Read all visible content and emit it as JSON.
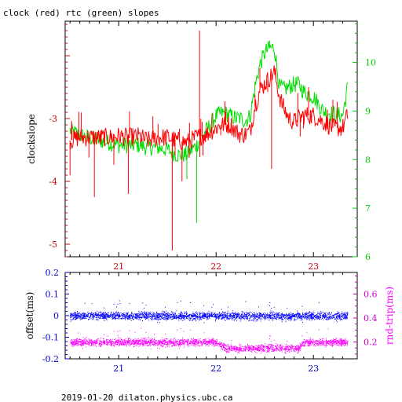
{
  "title": "clock (red) rtc (green) slopes",
  "footer": "2019-01-20 dilaton.physics.ubc.ca",
  "chart_data": [
    {
      "type": "line",
      "title": "clock (red) rtc (green) slopes",
      "xlabel": "",
      "ylabel": "clockslope",
      "xlim": [
        20.45,
        23.45
      ],
      "ylim": [
        -5.2,
        -1.45
      ],
      "y2lim": [
        6.0,
        10.85
      ],
      "x_ticks": [
        21,
        22,
        23
      ],
      "y_ticks": [
        -5,
        -4,
        -3
      ],
      "y2_ticks": [
        6,
        7,
        8,
        9,
        10
      ],
      "colors": {
        "clock": "#ff0000",
        "rtc": "#00dd00",
        "left_axis": "#cc0000",
        "right_axis": "#00cc00"
      },
      "series": [
        {
          "name": "clock",
          "axis": "left",
          "x": [
            20.5,
            20.6,
            20.7,
            20.8,
            20.9,
            21.0,
            21.1,
            21.2,
            21.3,
            21.4,
            21.5,
            21.6,
            21.7,
            21.8,
            21.9,
            22.0,
            22.05,
            22.1,
            22.15,
            22.2,
            22.25,
            22.3,
            22.35,
            22.4,
            22.45,
            22.5,
            22.55,
            22.6,
            22.65,
            22.7,
            22.75,
            22.8,
            22.85,
            22.9,
            23.0,
            23.1,
            23.2,
            23.3,
            23.35
          ],
          "y": [
            -3.35,
            -3.3,
            -3.3,
            -3.3,
            -3.3,
            -3.28,
            -3.3,
            -3.28,
            -3.35,
            -3.3,
            -3.3,
            -3.35,
            -3.38,
            -3.3,
            -3.25,
            -3.15,
            -3.1,
            -3.1,
            -3.1,
            -3.2,
            -3.25,
            -3.25,
            -3.2,
            -2.8,
            -2.55,
            -2.45,
            -2.35,
            -2.25,
            -2.65,
            -2.85,
            -3.0,
            -3.05,
            -3.0,
            -2.95,
            -2.95,
            -3.05,
            -3.15,
            -3.15,
            -2.95
          ]
        },
        {
          "name": "rtc",
          "axis": "right",
          "x": [
            20.5,
            20.6,
            20.7,
            20.8,
            20.9,
            21.0,
            21.1,
            21.2,
            21.3,
            21.4,
            21.5,
            21.6,
            21.7,
            21.8,
            21.9,
            22.0,
            22.05,
            22.1,
            22.15,
            22.2,
            22.25,
            22.3,
            22.35,
            22.4,
            22.45,
            22.5,
            22.55,
            22.6,
            22.65,
            22.7,
            22.75,
            22.8,
            22.85,
            22.9,
            23.0,
            23.1,
            23.2,
            23.3,
            23.35
          ],
          "y": [
            8.6,
            8.5,
            8.45,
            8.4,
            8.35,
            8.3,
            8.3,
            8.3,
            8.25,
            8.25,
            8.2,
            8.1,
            8.1,
            8.3,
            8.6,
            8.9,
            8.95,
            8.95,
            8.9,
            8.85,
            8.85,
            8.8,
            8.9,
            9.5,
            9.95,
            10.2,
            10.3,
            10.3,
            9.5,
            9.45,
            9.5,
            9.55,
            9.55,
            9.4,
            9.3,
            9.0,
            8.95,
            8.9,
            9.5
          ]
        }
      ]
    },
    {
      "type": "scatter",
      "xlabel": "",
      "ylabel": "offset(ms)",
      "y2label": "rnd-trip(ms)",
      "xlim": [
        20.45,
        23.45
      ],
      "ylim": [
        -0.2,
        0.2
      ],
      "y2lim": [
        0.06,
        0.78
      ],
      "x_ticks": [
        21,
        22,
        23
      ],
      "y_ticks": [
        -0.2,
        -0.1,
        0,
        0.1,
        0.2
      ],
      "y_tick_labels": [
        "-0.2",
        "-0.1",
        "0",
        "0.1",
        "0.2"
      ],
      "y2_ticks": [
        0.2,
        0.4,
        0.6
      ],
      "colors": {
        "offset": "#0000ff",
        "rnd_trip": "#ff00ff"
      },
      "series": [
        {
          "name": "offset",
          "axis": "left",
          "x": [
            20.5,
            20.75,
            21.0,
            21.25,
            21.5,
            21.75,
            22.0,
            22.25,
            22.5,
            22.75,
            23.0,
            23.25,
            23.35
          ],
          "y": [
            0.0,
            0.0,
            0.0,
            0.0,
            0.0,
            0.0,
            0.0,
            0.0,
            0.0,
            0.0,
            0.0,
            0.0,
            0.0
          ]
        },
        {
          "name": "rnd-trip",
          "axis": "right",
          "x": [
            20.5,
            20.75,
            21.0,
            21.25,
            21.5,
            21.75,
            22.0,
            22.1,
            22.3,
            22.5,
            22.7,
            22.85,
            22.9,
            23.1,
            23.35
          ],
          "y": [
            0.2,
            0.2,
            0.2,
            0.2,
            0.2,
            0.2,
            0.2,
            0.15,
            0.15,
            0.15,
            0.15,
            0.15,
            0.2,
            0.2,
            0.2
          ]
        }
      ]
    }
  ]
}
